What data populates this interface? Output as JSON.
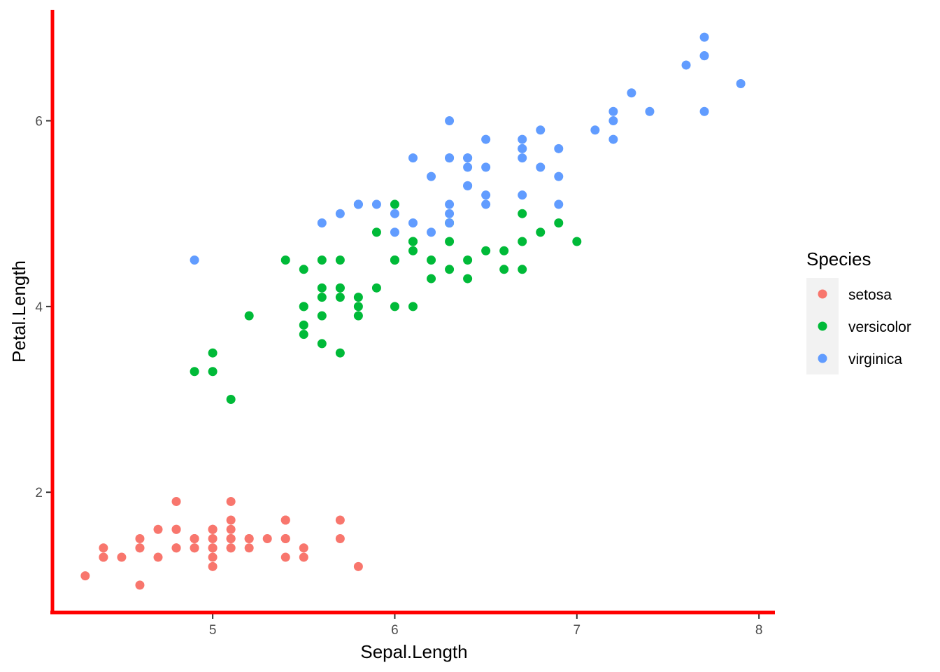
{
  "chart_data": {
    "type": "scatter",
    "title": "",
    "xlabel": "Sepal.Length",
    "ylabel": "Petal.Length",
    "xlim": [
      4.12,
      8.08
    ],
    "ylim": [
      0.705,
      7.195
    ],
    "xticks": [
      5,
      6,
      7,
      8
    ],
    "yticks": [
      2,
      4,
      6
    ],
    "grid": false,
    "legend": {
      "title": "Species",
      "position": "right"
    },
    "axis_line_color": "#ff0000",
    "series": [
      {
        "name": "setosa",
        "color": "#F8766D",
        "points": [
          [
            5.1,
            1.4
          ],
          [
            4.9,
            1.4
          ],
          [
            4.7,
            1.3
          ],
          [
            4.6,
            1.5
          ],
          [
            5.0,
            1.4
          ],
          [
            5.4,
            1.7
          ],
          [
            4.6,
            1.4
          ],
          [
            5.0,
            1.5
          ],
          [
            4.4,
            1.4
          ],
          [
            4.9,
            1.5
          ],
          [
            5.4,
            1.5
          ],
          [
            4.8,
            1.6
          ],
          [
            4.8,
            1.4
          ],
          [
            4.3,
            1.1
          ],
          [
            5.8,
            1.2
          ],
          [
            5.7,
            1.5
          ],
          [
            5.4,
            1.3
          ],
          [
            5.1,
            1.4
          ],
          [
            5.7,
            1.7
          ],
          [
            5.1,
            1.5
          ],
          [
            5.4,
            1.7
          ],
          [
            5.1,
            1.5
          ],
          [
            4.6,
            1.0
          ],
          [
            5.1,
            1.7
          ],
          [
            4.8,
            1.9
          ],
          [
            5.0,
            1.6
          ],
          [
            5.0,
            1.6
          ],
          [
            5.2,
            1.5
          ],
          [
            5.2,
            1.4
          ],
          [
            4.7,
            1.6
          ],
          [
            4.8,
            1.6
          ],
          [
            5.4,
            1.5
          ],
          [
            5.2,
            1.5
          ],
          [
            5.5,
            1.4
          ],
          [
            4.9,
            1.5
          ],
          [
            5.0,
            1.2
          ],
          [
            5.5,
            1.3
          ],
          [
            4.9,
            1.4
          ],
          [
            4.4,
            1.3
          ],
          [
            5.1,
            1.5
          ],
          [
            5.0,
            1.3
          ],
          [
            4.5,
            1.3
          ],
          [
            4.4,
            1.3
          ],
          [
            5.0,
            1.6
          ],
          [
            5.1,
            1.9
          ],
          [
            4.8,
            1.4
          ],
          [
            5.1,
            1.6
          ],
          [
            4.6,
            1.4
          ],
          [
            5.3,
            1.5
          ],
          [
            5.0,
            1.4
          ]
        ]
      },
      {
        "name": "versicolor",
        "color": "#00BA38",
        "points": [
          [
            7.0,
            4.7
          ],
          [
            6.4,
            4.5
          ],
          [
            6.9,
            4.9
          ],
          [
            5.5,
            4.0
          ],
          [
            6.5,
            4.6
          ],
          [
            5.7,
            4.5
          ],
          [
            6.3,
            4.7
          ],
          [
            4.9,
            3.3
          ],
          [
            6.6,
            4.6
          ],
          [
            5.2,
            3.9
          ],
          [
            5.0,
            3.5
          ],
          [
            5.9,
            4.2
          ],
          [
            6.0,
            4.0
          ],
          [
            6.1,
            4.7
          ],
          [
            5.6,
            3.6
          ],
          [
            6.7,
            4.4
          ],
          [
            5.6,
            4.5
          ],
          [
            5.8,
            4.1
          ],
          [
            6.2,
            4.5
          ],
          [
            5.6,
            3.9
          ],
          [
            5.9,
            4.8
          ],
          [
            6.1,
            4.0
          ],
          [
            6.3,
            4.9
          ],
          [
            6.1,
            4.7
          ],
          [
            6.4,
            4.3
          ],
          [
            6.6,
            4.4
          ],
          [
            6.8,
            4.8
          ],
          [
            6.7,
            5.0
          ],
          [
            6.0,
            4.5
          ],
          [
            5.7,
            3.5
          ],
          [
            5.5,
            3.8
          ],
          [
            5.5,
            3.7
          ],
          [
            5.8,
            3.9
          ],
          [
            6.0,
            5.1
          ],
          [
            5.4,
            4.5
          ],
          [
            6.0,
            4.5
          ],
          [
            6.7,
            4.7
          ],
          [
            6.3,
            4.4
          ],
          [
            5.6,
            4.1
          ],
          [
            5.5,
            4.0
          ],
          [
            5.5,
            4.4
          ],
          [
            6.1,
            4.6
          ],
          [
            5.8,
            4.0
          ],
          [
            5.0,
            3.3
          ],
          [
            5.6,
            4.2
          ],
          [
            5.7,
            4.2
          ],
          [
            5.7,
            4.2
          ],
          [
            6.2,
            4.3
          ],
          [
            5.1,
            3.0
          ],
          [
            5.7,
            4.1
          ]
        ]
      },
      {
        "name": "virginica",
        "color": "#619CFF",
        "points": [
          [
            6.3,
            6.0
          ],
          [
            5.8,
            5.1
          ],
          [
            7.1,
            5.9
          ],
          [
            6.3,
            5.6
          ],
          [
            6.5,
            5.8
          ],
          [
            7.6,
            6.6
          ],
          [
            4.9,
            4.5
          ],
          [
            7.3,
            6.3
          ],
          [
            6.7,
            5.8
          ],
          [
            7.2,
            6.1
          ],
          [
            6.5,
            5.1
          ],
          [
            6.4,
            5.3
          ],
          [
            6.8,
            5.5
          ],
          [
            5.7,
            5.0
          ],
          [
            5.8,
            5.1
          ],
          [
            6.4,
            5.3
          ],
          [
            6.5,
            5.5
          ],
          [
            7.7,
            6.7
          ],
          [
            7.7,
            6.9
          ],
          [
            6.0,
            5.0
          ],
          [
            6.9,
            5.7
          ],
          [
            5.6,
            4.9
          ],
          [
            7.7,
            6.7
          ],
          [
            6.3,
            4.9
          ],
          [
            6.7,
            5.7
          ],
          [
            7.2,
            6.0
          ],
          [
            6.2,
            4.8
          ],
          [
            6.1,
            4.9
          ],
          [
            6.4,
            5.6
          ],
          [
            7.2,
            5.8
          ],
          [
            7.4,
            6.1
          ],
          [
            7.9,
            6.4
          ],
          [
            6.4,
            5.6
          ],
          [
            6.3,
            5.1
          ],
          [
            6.1,
            5.6
          ],
          [
            7.7,
            6.1
          ],
          [
            6.3,
            5.6
          ],
          [
            6.4,
            5.5
          ],
          [
            6.0,
            4.8
          ],
          [
            6.9,
            5.4
          ],
          [
            6.7,
            5.6
          ],
          [
            6.9,
            5.1
          ],
          [
            5.8,
            5.1
          ],
          [
            6.8,
            5.9
          ],
          [
            6.7,
            5.7
          ],
          [
            6.7,
            5.2
          ],
          [
            6.3,
            5.0
          ],
          [
            6.5,
            5.2
          ],
          [
            6.2,
            5.4
          ],
          [
            5.9,
            5.1
          ]
        ]
      }
    ]
  }
}
